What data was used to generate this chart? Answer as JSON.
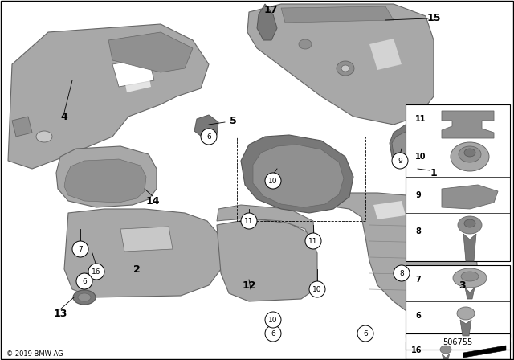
{
  "bg_color": "#ffffff",
  "border_color": "#000000",
  "part_color": "#a8a8a8",
  "part_color_dark": "#787878",
  "part_color_light": "#c8c8c8",
  "part_color_mid": "#909090",
  "copyright": "© 2019 BMW AG",
  "part_number": "506755",
  "figsize": [
    6.4,
    4.48
  ],
  "dpi": 100
}
